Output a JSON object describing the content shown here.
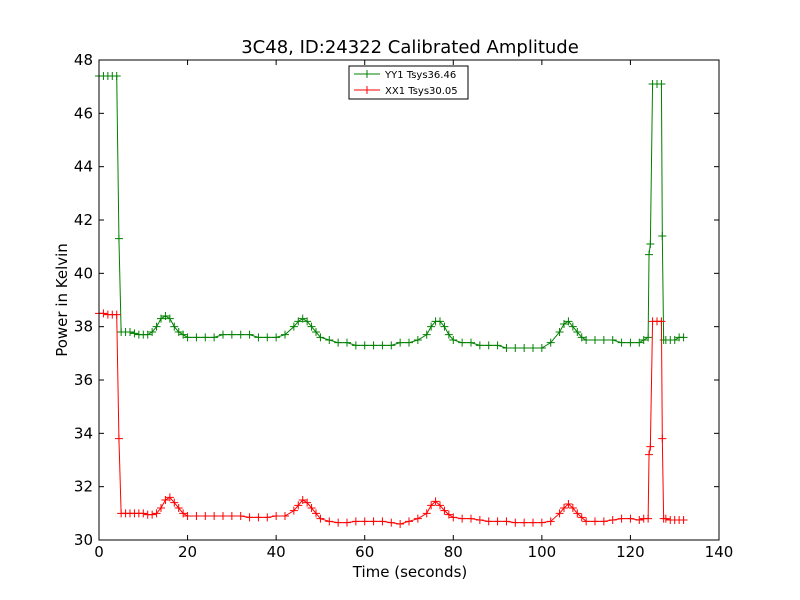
{
  "chart_data": {
    "type": "line",
    "title": "3C48, ID:24322 Calibrated Amplitude",
    "xlabel": "Time (seconds)",
    "ylabel": "Power in Kelvin",
    "xlim": [
      0,
      140
    ],
    "ylim": [
      30,
      48
    ],
    "xticks": [
      0,
      20,
      40,
      60,
      80,
      100,
      120,
      140
    ],
    "yticks": [
      30,
      32,
      34,
      36,
      38,
      40,
      42,
      44,
      46,
      48
    ],
    "grid": false,
    "legend": "top-center",
    "marker": "+",
    "series": [
      {
        "name": "YY1 Tsys36.46",
        "color": "#008000",
        "x": [
          0,
          1,
          2,
          3,
          4,
          4.5,
          5,
          6,
          7,
          8,
          9,
          10,
          11,
          12,
          13,
          14,
          15,
          16,
          17,
          18,
          19,
          20,
          22,
          24,
          26,
          28,
          30,
          32,
          34,
          36,
          38,
          40,
          42,
          44,
          45,
          46,
          47,
          48,
          49,
          50,
          52,
          54,
          56,
          58,
          60,
          62,
          64,
          66,
          68,
          70,
          72,
          74,
          75,
          76,
          77,
          78,
          79,
          80,
          82,
          84,
          86,
          88,
          90,
          92,
          94,
          96,
          98,
          100,
          102,
          104,
          105,
          106,
          107,
          108,
          109,
          110,
          112,
          114,
          116,
          118,
          120,
          122,
          123,
          124,
          124.2,
          124.5,
          125,
          126,
          127,
          127.2,
          127.5,
          128,
          129,
          130,
          131,
          132
        ],
        "values": [
          47.4,
          47.4,
          47.4,
          47.4,
          47.4,
          41.3,
          37.8,
          37.8,
          37.8,
          37.75,
          37.7,
          37.7,
          37.7,
          37.8,
          38.0,
          38.3,
          38.4,
          38.3,
          38.0,
          37.8,
          37.7,
          37.6,
          37.6,
          37.6,
          37.6,
          37.7,
          37.7,
          37.7,
          37.7,
          37.6,
          37.6,
          37.6,
          37.7,
          38.0,
          38.2,
          38.3,
          38.2,
          38.0,
          37.8,
          37.6,
          37.5,
          37.4,
          37.4,
          37.3,
          37.3,
          37.3,
          37.3,
          37.3,
          37.4,
          37.4,
          37.5,
          37.7,
          38.0,
          38.2,
          38.2,
          38.0,
          37.7,
          37.5,
          37.4,
          37.4,
          37.3,
          37.3,
          37.3,
          37.2,
          37.2,
          37.2,
          37.2,
          37.2,
          37.4,
          37.8,
          38.1,
          38.2,
          38.0,
          37.8,
          37.6,
          37.5,
          37.5,
          37.5,
          37.5,
          37.4,
          37.4,
          37.4,
          37.5,
          37.6,
          40.7,
          41.1,
          47.1,
          47.1,
          47.1,
          41.4,
          37.5,
          37.5,
          37.5,
          37.5,
          37.6,
          37.6
        ]
      },
      {
        "name": "XX1 Tsys30.05",
        "color": "#ff0000",
        "x": [
          0,
          1,
          2,
          3,
          4,
          4.5,
          5,
          6,
          7,
          8,
          9,
          10,
          11,
          12,
          13,
          14,
          15,
          16,
          17,
          18,
          19,
          20,
          22,
          24,
          26,
          28,
          30,
          32,
          34,
          36,
          38,
          40,
          42,
          44,
          45,
          46,
          47,
          48,
          49,
          50,
          52,
          54,
          56,
          58,
          60,
          62,
          64,
          66,
          68,
          70,
          72,
          74,
          75,
          76,
          77,
          78,
          79,
          80,
          82,
          84,
          86,
          88,
          90,
          92,
          94,
          96,
          98,
          100,
          102,
          104,
          105,
          106,
          107,
          108,
          109,
          110,
          112,
          114,
          116,
          118,
          120,
          122,
          123,
          124,
          124.2,
          124.5,
          125,
          126,
          127,
          127.2,
          127.5,
          128,
          129,
          130,
          131,
          132
        ],
        "values": [
          38.5,
          38.5,
          38.45,
          38.45,
          38.45,
          33.8,
          31.0,
          31.0,
          31.0,
          31.0,
          31.0,
          31.0,
          30.95,
          30.95,
          31.0,
          31.2,
          31.5,
          31.6,
          31.4,
          31.2,
          31.0,
          30.9,
          30.9,
          30.9,
          30.9,
          30.9,
          30.9,
          30.9,
          30.85,
          30.85,
          30.85,
          30.9,
          30.9,
          31.1,
          31.3,
          31.5,
          31.4,
          31.2,
          31.0,
          30.8,
          30.7,
          30.65,
          30.65,
          30.7,
          30.7,
          30.7,
          30.7,
          30.65,
          30.6,
          30.7,
          30.8,
          31.0,
          31.3,
          31.45,
          31.3,
          31.1,
          30.95,
          30.85,
          30.8,
          30.8,
          30.75,
          30.7,
          30.7,
          30.7,
          30.65,
          30.65,
          30.65,
          30.65,
          30.7,
          31.0,
          31.2,
          31.35,
          31.2,
          31.0,
          30.85,
          30.7,
          30.7,
          30.7,
          30.75,
          30.8,
          30.8,
          30.75,
          30.8,
          30.8,
          33.2,
          33.5,
          38.2,
          38.2,
          38.2,
          33.8,
          30.8,
          30.8,
          30.75,
          30.75,
          30.75,
          30.75
        ]
      }
    ]
  }
}
